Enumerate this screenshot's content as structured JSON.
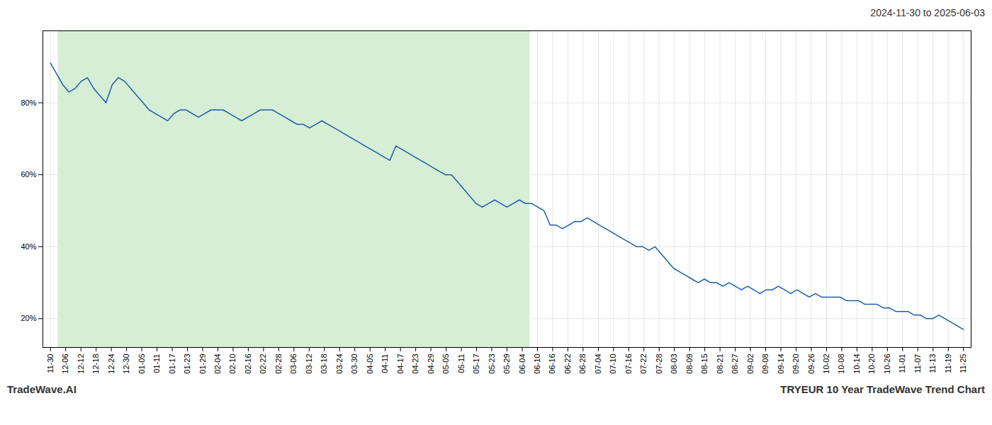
{
  "chart_data": {
    "type": "line",
    "title": "TRYEUR 10 Year TradeWave Trend Chart",
    "subtitle": "2024-11-30 to 2025-06-03",
    "annotations": [
      "TradeWave.AI"
    ],
    "color": "#1a5fa8",
    "grid": true,
    "highlight": {
      "xmin": 0.5,
      "xmax": 31.5,
      "color": "#d6edd6"
    },
    "x": [
      0,
      0.4054,
      0.8108,
      1.2162,
      1.6216,
      2.027,
      2.4324,
      2.8378,
      3.2432,
      3.6486,
      4.0541,
      4.4595,
      4.8649,
      5.2703,
      5.6757,
      6.0811,
      6.4865,
      6.8919,
      7.2973,
      7.7027,
      8.1081,
      8.5135,
      8.9189,
      9.3243,
      9.7297,
      10.1351,
      10.5405,
      10.9459,
      11.3514,
      11.7568,
      12.1622,
      12.5676,
      12.973,
      13.3784,
      13.7838,
      14.1892,
      14.5946,
      15,
      15.4054,
      15.8108,
      16.2162,
      16.6216,
      17.027,
      17.4324,
      17.8378,
      18.2432,
      18.6486,
      19.0541,
      19.4595,
      19.8649,
      20.2703,
      20.6757,
      21.0811,
      21.4865,
      21.8919,
      22.2973,
      22.7027,
      23.1081,
      23.5135,
      23.9189,
      24.3243,
      24.7297,
      25.1351,
      25.5405,
      25.9459,
      26.3514,
      26.7568,
      27.1622,
      27.5676,
      27.973,
      28.3784,
      28.7838,
      29.1892,
      29.5946,
      30,
      30.4054,
      30.8108,
      31.2162,
      31.6216,
      32.027,
      32.4324,
      32.8378,
      33.2432,
      33.6486,
      34.0541,
      34.4595,
      34.8649,
      35.2703,
      35.6757,
      36.0811,
      36.4865,
      36.8919,
      37.2973,
      37.7027,
      38.1081,
      38.5135,
      38.9189,
      39.3243,
      39.7297,
      40.1351,
      40.5405,
      40.9459,
      41.3514,
      41.7568,
      42.1622,
      42.5676,
      42.973,
      43.3784,
      43.7838,
      44.1892,
      44.5946,
      45,
      45.4054,
      45.8108,
      46.2162,
      46.6216,
      47.027,
      47.4324,
      47.8378,
      48.2432,
      48.6486,
      49.0541,
      49.4595,
      49.8649,
      50.2703,
      50.6757,
      51.0811,
      51.4865,
      51.8919,
      52.2973,
      52.7027,
      53.1081,
      53.5135,
      53.9189,
      54.3243,
      54.7297,
      55.1351,
      55.5405,
      55.9459,
      56.3514,
      56.7568,
      57.1622,
      57.5676,
      57.973,
      58.3784,
      58.7838,
      59.1892,
      59.5946,
      60
    ],
    "values": [
      91,
      88,
      85,
      83,
      84,
      86,
      87,
      84,
      82,
      80,
      85,
      87,
      86,
      84,
      82,
      80,
      78,
      77,
      76,
      75,
      77,
      78,
      78,
      77,
      76,
      77,
      78,
      78,
      78,
      77,
      76,
      75,
      76,
      77,
      78,
      78,
      78,
      77,
      76,
      75,
      74,
      74,
      73,
      74,
      75,
      74,
      73,
      72,
      71,
      70,
      69,
      68,
      67,
      66,
      65,
      64,
      68,
      67,
      66,
      65,
      64,
      63,
      62,
      61,
      60,
      60,
      58,
      56,
      54,
      52,
      51,
      52,
      53,
      52,
      51,
      52,
      53,
      52,
      52,
      51,
      50,
      46,
      46,
      45,
      46,
      47,
      47,
      48,
      47,
      46,
      45,
      44,
      43,
      42,
      41,
      40,
      40,
      39,
      40,
      38,
      36,
      34,
      33,
      32,
      31,
      30,
      31,
      30,
      30,
      29,
      30,
      29,
      28,
      29,
      28,
      27,
      28,
      28,
      29,
      28,
      27,
      28,
      27,
      26,
      27,
      26,
      26,
      26,
      26,
      25,
      25,
      25,
      24,
      24,
      24,
      23,
      23,
      22,
      22,
      22,
      21,
      21,
      20,
      20,
      21,
      20,
      19,
      18,
      17
    ],
    "xlim": [
      -0.5,
      60.5
    ],
    "xticks": [
      {
        "value": 0,
        "label": "11-30"
      },
      {
        "value": 1,
        "label": "12-06"
      },
      {
        "value": 2,
        "label": "12-12"
      },
      {
        "value": 3,
        "label": "12-18"
      },
      {
        "value": 4,
        "label": "12-24"
      },
      {
        "value": 5,
        "label": "12-30"
      },
      {
        "value": 6,
        "label": "01-05"
      },
      {
        "value": 7,
        "label": "01-11"
      },
      {
        "value": 8,
        "label": "01-17"
      },
      {
        "value": 9,
        "label": "01-23"
      },
      {
        "value": 10,
        "label": "01-29"
      },
      {
        "value": 11,
        "label": "02-04"
      },
      {
        "value": 12,
        "label": "02-10"
      },
      {
        "value": 13,
        "label": "02-16"
      },
      {
        "value": 14,
        "label": "02-22"
      },
      {
        "value": 15,
        "label": "02-28"
      },
      {
        "value": 16,
        "label": "03-06"
      },
      {
        "value": 17,
        "label": "03-12"
      },
      {
        "value": 18,
        "label": "03-18"
      },
      {
        "value": 19,
        "label": "03-24"
      },
      {
        "value": 20,
        "label": "03-30"
      },
      {
        "value": 21,
        "label": "04-05"
      },
      {
        "value": 22,
        "label": "04-11"
      },
      {
        "value": 23,
        "label": "04-17"
      },
      {
        "value": 24,
        "label": "04-23"
      },
      {
        "value": 25,
        "label": "04-29"
      },
      {
        "value": 26,
        "label": "05-05"
      },
      {
        "value": 27,
        "label": "05-11"
      },
      {
        "value": 28,
        "label": "05-17"
      },
      {
        "value": 29,
        "label": "05-23"
      },
      {
        "value": 30,
        "label": "05-29"
      },
      {
        "value": 31,
        "label": "06-04"
      },
      {
        "value": 32,
        "label": "06-10"
      },
      {
        "value": 33,
        "label": "06-16"
      },
      {
        "value": 34,
        "label": "06-22"
      },
      {
        "value": 35,
        "label": "06-28"
      },
      {
        "value": 36,
        "label": "07-04"
      },
      {
        "value": 37,
        "label": "07-10"
      },
      {
        "value": 38,
        "label": "07-16"
      },
      {
        "value": 39,
        "label": "07-22"
      },
      {
        "value": 40,
        "label": "07-28"
      },
      {
        "value": 41,
        "label": "08-03"
      },
      {
        "value": 42,
        "label": "08-09"
      },
      {
        "value": 43,
        "label": "08-15"
      },
      {
        "value": 44,
        "label": "08-21"
      },
      {
        "value": 45,
        "label": "08-27"
      },
      {
        "value": 46,
        "label": "09-02"
      },
      {
        "value": 47,
        "label": "09-08"
      },
      {
        "value": 48,
        "label": "09-14"
      },
      {
        "value": 49,
        "label": "09-20"
      },
      {
        "value": 50,
        "label": "09-26"
      },
      {
        "value": 51,
        "label": "10-02"
      },
      {
        "value": 52,
        "label": "10-08"
      },
      {
        "value": 53,
        "label": "10-14"
      },
      {
        "value": 54,
        "label": "10-20"
      },
      {
        "value": 55,
        "label": "10-26"
      },
      {
        "value": 56,
        "label": "11-01"
      },
      {
        "value": 57,
        "label": "11-07"
      },
      {
        "value": 58,
        "label": "11-13"
      },
      {
        "value": 59,
        "label": "11-19"
      },
      {
        "value": 60,
        "label": "11-25"
      }
    ],
    "ylim": [
      12,
      100
    ],
    "yticks": [
      {
        "value": 20,
        "label": "20%"
      },
      {
        "value": 40,
        "label": "40%"
      },
      {
        "value": 60,
        "label": "60%"
      },
      {
        "value": 80,
        "label": "80%"
      }
    ]
  }
}
